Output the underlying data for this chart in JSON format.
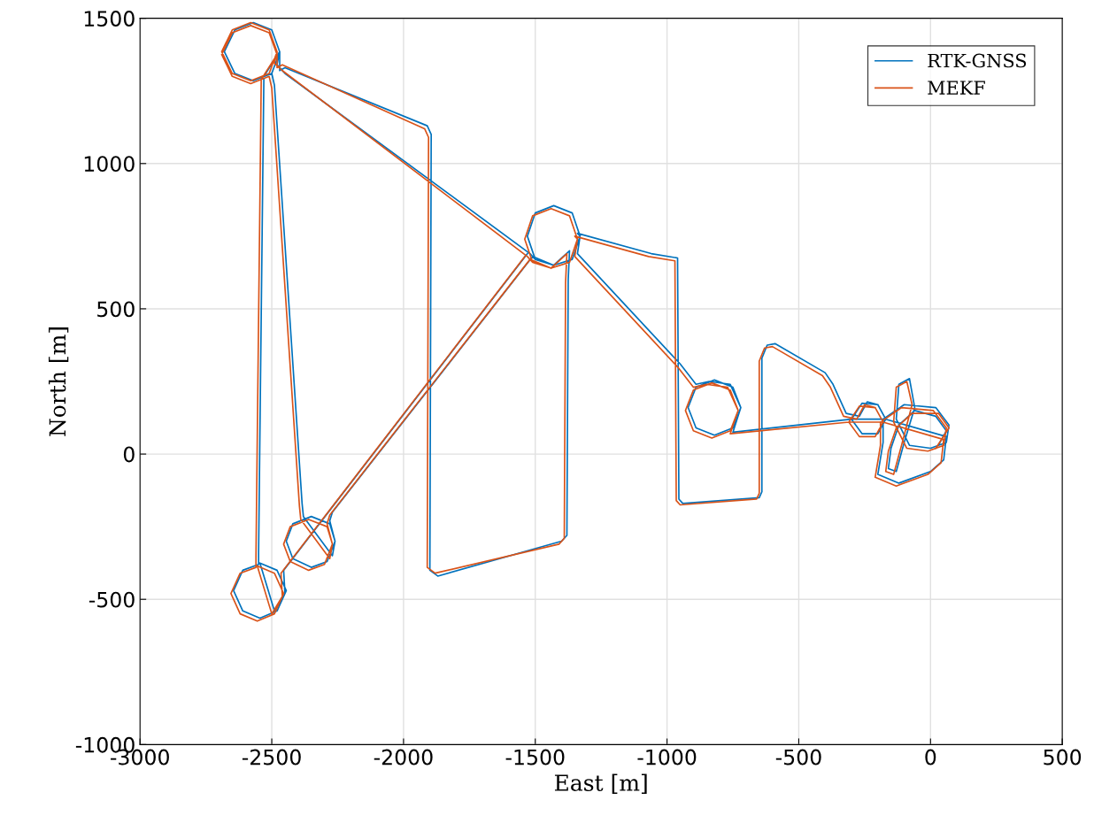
{
  "chart_data": {
    "type": "line",
    "xlabel": "East [m]",
    "ylabel": "North [m]",
    "xlim": [
      -3000,
      500
    ],
    "ylim": [
      -1000,
      1500
    ],
    "xticks": [
      -3000,
      -2500,
      -2000,
      -1500,
      -1000,
      -500,
      0,
      500
    ],
    "yticks": [
      -1000,
      -500,
      0,
      500,
      1000,
      1500
    ],
    "grid": true,
    "legend": "top right",
    "marker": "none",
    "line_style": "solid",
    "series": [
      {
        "name": "RTK-GNSS",
        "color": "#0072bd",
        "x": [
          30,
          60,
          20,
          -60,
          -120,
          -150,
          -160,
          -130,
          -100,
          -60,
          -80,
          -120,
          -130,
          -80,
          0,
          60,
          70,
          20,
          -100,
          -180,
          -180,
          -200,
          -120,
          0,
          50,
          60,
          -170,
          -200,
          -260,
          -300,
          -260,
          -200,
          -170,
          -300,
          -750,
          -720,
          -750,
          -820,
          -890,
          -920,
          -890,
          -820,
          -750,
          -720,
          -760,
          -840,
          -890,
          -950,
          -1340,
          -1330,
          -1360,
          -1430,
          -1500,
          -1530,
          -1500,
          -1430,
          -1360,
          -1330,
          -1340,
          -1060,
          -960,
          -955,
          -940,
          -650,
          -640,
          -640,
          -620,
          -590,
          -400,
          -370,
          -320,
          -270,
          -240,
          -200,
          null,
          -1430,
          -1370,
          -1375,
          -1380,
          -1400,
          -1870,
          -1900,
          -1895,
          -1910,
          -2450,
          -2470,
          -2470,
          -2500,
          -2570,
          -2640,
          -2680,
          -2640,
          -2570,
          -2500,
          -2470,
          -2480,
          -2450,
          -1520,
          -1500,
          -1530,
          -1500,
          -1430,
          -1360,
          -1330,
          -1360,
          -1430,
          -1510,
          -2270,
          -2280,
          -2260,
          -2290,
          -2350,
          -2420,
          -2445,
          -2420,
          -2350,
          -2280,
          -2260,
          -2270,
          -2380,
          -2385,
          -2490,
          -2500,
          -2570,
          -2640,
          -2680,
          -2640,
          -2570,
          -2500,
          -2470,
          -2530,
          -2550,
          -2550,
          -2610,
          -2645,
          -2610,
          -2545,
          -2480,
          -2445,
          -2480,
          -2545,
          -2490,
          -2450,
          -2455,
          -1530
        ],
        "values": [
          30,
          80,
          130,
          150,
          100,
          20,
          -50,
          -60,
          40,
          160,
          260,
          240,
          120,
          30,
          20,
          40,
          100,
          160,
          170,
          120,
          40,
          -70,
          -100,
          -60,
          -20,
          60,
          120,
          170,
          175,
          120,
          70,
          70,
          120,
          120,
          75,
          160,
          230,
          255,
          230,
          160,
          90,
          65,
          90,
          160,
          240,
          250,
          240,
          310,
          690,
          750,
          830,
          855,
          830,
          750,
          670,
          650,
          670,
          750,
          760,
          690,
          675,
          -155,
          -170,
          -150,
          -130,
          330,
          375,
          380,
          280,
          240,
          140,
          130,
          180,
          170,
          null,
          650,
          700,
          600,
          -280,
          -300,
          -420,
          -400,
          1100,
          1130,
          1330,
          1320,
          1385,
          1460,
          1485,
          1460,
          1385,
          1310,
          1285,
          1310,
          1385,
          1340,
          1310,
          690,
          670,
          750,
          830,
          855,
          830,
          750,
          670,
          650,
          680,
          -200,
          -230,
          -300,
          -370,
          -390,
          -360,
          -300,
          -240,
          -215,
          -240,
          -300,
          -350,
          -215,
          -170,
          1270,
          1310,
          1285,
          1310,
          1385,
          1460,
          1485,
          1460,
          1385,
          1300,
          -340,
          -380,
          -400,
          -470,
          -540,
          -565,
          -540,
          -470,
          -400,
          -375,
          -540,
          -480,
          -400,
          690
        ]
      },
      {
        "name": "MEKF",
        "color": "#d95319",
        "x": [
          20,
          70,
          30,
          -70,
          -130,
          -160,
          -170,
          -140,
          -110,
          -70,
          -90,
          -130,
          -140,
          -90,
          -10,
          50,
          60,
          10,
          -110,
          -190,
          -190,
          -210,
          -130,
          -10,
          40,
          50,
          -180,
          -210,
          -270,
          -310,
          -270,
          -210,
          -180,
          -310,
          -760,
          -730,
          -760,
          -830,
          -900,
          -930,
          -900,
          -830,
          -760,
          -730,
          -770,
          -850,
          -900,
          -960,
          -1350,
          -1340,
          -1370,
          -1440,
          -1510,
          -1540,
          -1510,
          -1440,
          -1370,
          -1340,
          -1350,
          -1070,
          -970,
          -965,
          -950,
          -660,
          -650,
          -650,
          -630,
          -600,
          -410,
          -380,
          -330,
          -280,
          -250,
          -210,
          null,
          -1440,
          -1380,
          -1385,
          -1390,
          -1410,
          -1880,
          -1910,
          -1905,
          -1920,
          -2460,
          -2480,
          -2480,
          -2510,
          -2580,
          -2650,
          -2690,
          -2650,
          -2580,
          -2510,
          -2480,
          -2490,
          -2460,
          -1530,
          -1510,
          -1540,
          -1510,
          -1440,
          -1370,
          -1340,
          -1370,
          -1440,
          -1520,
          -2280,
          -2290,
          -2270,
          -2300,
          -2360,
          -2430,
          -2455,
          -2430,
          -2360,
          -2290,
          -2270,
          -2280,
          -2390,
          -2395,
          -2500,
          -2510,
          -2580,
          -2650,
          -2690,
          -2650,
          -2580,
          -2510,
          -2480,
          -2540,
          -2560,
          -2560,
          -2620,
          -2655,
          -2620,
          -2555,
          -2490,
          -2455,
          -2490,
          -2555,
          -2500,
          -2460,
          -2465,
          -1540
        ],
        "values": [
          20,
          90,
          140,
          140,
          90,
          10,
          -60,
          -70,
          30,
          170,
          250,
          230,
          110,
          20,
          10,
          30,
          90,
          150,
          160,
          110,
          30,
          -80,
          -110,
          -70,
          -30,
          50,
          110,
          160,
          165,
          110,
          60,
          60,
          110,
          110,
          70,
          150,
          220,
          245,
          220,
          150,
          80,
          55,
          80,
          150,
          230,
          240,
          230,
          300,
          680,
          740,
          820,
          845,
          820,
          740,
          660,
          640,
          660,
          740,
          750,
          680,
          665,
          -160,
          -175,
          -155,
          -135,
          320,
          365,
          370,
          270,
          230,
          130,
          120,
          170,
          160,
          null,
          640,
          690,
          590,
          -290,
          -310,
          -410,
          -390,
          1090,
          1120,
          1340,
          1330,
          1385,
          1460,
          1485,
          1460,
          1385,
          1310,
          1285,
          1310,
          1385,
          1345,
          1320,
          680,
          660,
          740,
          820,
          845,
          820,
          740,
          660,
          640,
          670,
          -210,
          -240,
          -310,
          -380,
          -400,
          -370,
          -310,
          -250,
          -225,
          -250,
          -310,
          -360,
          -225,
          -180,
          1260,
          1300,
          1275,
          1300,
          1375,
          1450,
          1475,
          1450,
          1375,
          1290,
          -350,
          -390,
          -410,
          -480,
          -550,
          -575,
          -550,
          -480,
          -410,
          -385,
          -550,
          -490,
          -410,
          680
        ]
      }
    ]
  }
}
